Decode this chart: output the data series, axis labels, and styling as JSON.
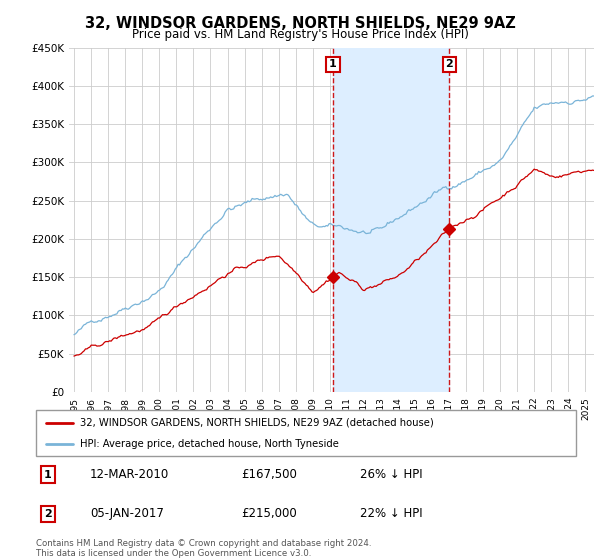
{
  "title": "32, WINDSOR GARDENS, NORTH SHIELDS, NE29 9AZ",
  "subtitle": "Price paid vs. HM Land Registry's House Price Index (HPI)",
  "ylim": [
    0,
    450000
  ],
  "yticks": [
    0,
    50000,
    100000,
    150000,
    200000,
    250000,
    300000,
    350000,
    400000,
    450000
  ],
  "ytick_labels": [
    "£0",
    "£50K",
    "£100K",
    "£150K",
    "£200K",
    "£250K",
    "£300K",
    "£350K",
    "£400K",
    "£450K"
  ],
  "hpi_color": "#7ab4d8",
  "price_color": "#cc0000",
  "dashed_color": "#cc0000",
  "shade_color": "#ddeeff",
  "background_color": "#ffffff",
  "legend_label_price": "32, WINDSOR GARDENS, NORTH SHIELDS, NE29 9AZ (detached house)",
  "legend_label_hpi": "HPI: Average price, detached house, North Tyneside",
  "sale1_date": "12-MAR-2010",
  "sale1_price": "£167,500",
  "sale1_hpi": "26% ↓ HPI",
  "sale1_x": 2010.19,
  "sale2_date": "05-JAN-2017",
  "sale2_price": "£215,000",
  "sale2_hpi": "22% ↓ HPI",
  "sale2_x": 2017.01,
  "footnote": "Contains HM Land Registry data © Crown copyright and database right 2024.\nThis data is licensed under the Open Government Licence v3.0."
}
